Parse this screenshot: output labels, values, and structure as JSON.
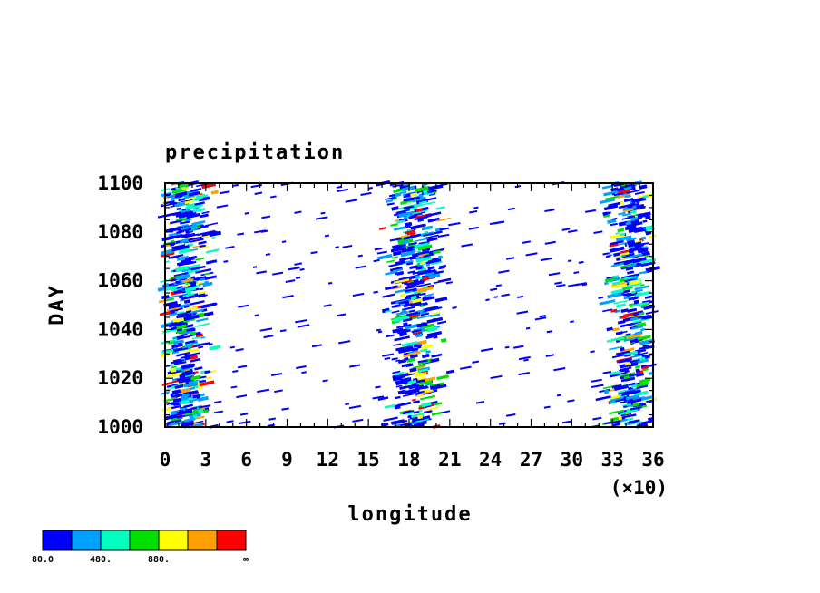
{
  "chart_data": {
    "type": "heatmap",
    "title": "precipitation",
    "xlabel": "longitude",
    "ylabel": "DAY",
    "x_multiplier_label": "(×10)",
    "xlim": [
      0,
      36
    ],
    "ylim": [
      1000,
      1100
    ],
    "x_ticks": [
      0,
      3,
      6,
      9,
      12,
      15,
      18,
      21,
      24,
      27,
      30,
      33,
      36
    ],
    "y_ticks": [
      1000,
      1020,
      1040,
      1060,
      1080,
      1100
    ],
    "x_tick_labels": [
      "0",
      "3",
      "6",
      "9",
      "12",
      "15",
      "18",
      "21",
      "24",
      "27",
      "30",
      "33",
      "36"
    ],
    "y_tick_labels": [
      "1000",
      "1020",
      "1040",
      "1060",
      "1080",
      "1100"
    ],
    "colorbar": {
      "colors": [
        "#0000ff",
        "#00a0ff",
        "#00ffc0",
        "#00e000",
        "#ffff00",
        "#ffa000",
        "#ff0000"
      ],
      "labels": [
        "80.0",
        "480.",
        "880.",
        "∞"
      ]
    },
    "active_bands": [
      {
        "lon_center": 1.5,
        "weight": 1.0
      },
      {
        "lon_center": 18.5,
        "weight": 1.0
      },
      {
        "lon_center": 34.5,
        "weight": 0.9
      }
    ]
  }
}
